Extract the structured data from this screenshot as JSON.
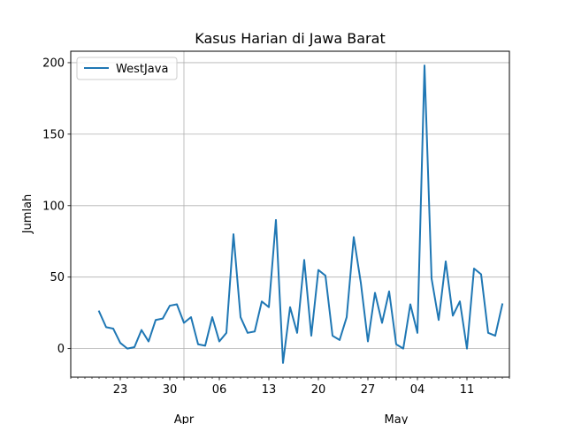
{
  "chart_data": {
    "type": "line",
    "title": "Kasus Harian di Jawa Barat",
    "xlabel": "",
    "ylabel": "Jumlah",
    "x_start_date": "2020-03-20",
    "xlim": [
      "2020-03-16",
      "2020-05-17"
    ],
    "ylim": [
      -20,
      208
    ],
    "yticks": [
      0,
      50,
      100,
      150,
      200
    ],
    "xticks_minor": [
      {
        "date": "2020-03-23",
        "label": "23"
      },
      {
        "date": "2020-03-30",
        "label": "30"
      },
      {
        "date": "2020-04-06",
        "label": "06"
      },
      {
        "date": "2020-04-13",
        "label": "13"
      },
      {
        "date": "2020-04-20",
        "label": "20"
      },
      {
        "date": "2020-04-27",
        "label": "27"
      },
      {
        "date": "2020-05-04",
        "label": "04"
      },
      {
        "date": "2020-05-11",
        "label": "11"
      }
    ],
    "xticks_major": [
      {
        "date": "2020-04-01",
        "label": "Apr"
      },
      {
        "date": "2020-05-01",
        "label": "May"
      }
    ],
    "grid": true,
    "legend_position": "upper left",
    "series": [
      {
        "name": "WestJava",
        "color": "#1f77b4",
        "values": [
          26,
          15,
          14,
          4,
          0,
          1,
          13,
          5,
          20,
          21,
          30,
          31,
          18,
          22,
          3,
          2,
          22,
          5,
          11,
          80,
          22,
          11,
          12,
          33,
          29,
          90,
          -10,
          29,
          11,
          62,
          9,
          55,
          51,
          9,
          6,
          22,
          78,
          46,
          5,
          39,
          18,
          40,
          3,
          0,
          31,
          11,
          198,
          49,
          20,
          61,
          23,
          33,
          0,
          56,
          52,
          11,
          9,
          31
        ]
      }
    ]
  }
}
